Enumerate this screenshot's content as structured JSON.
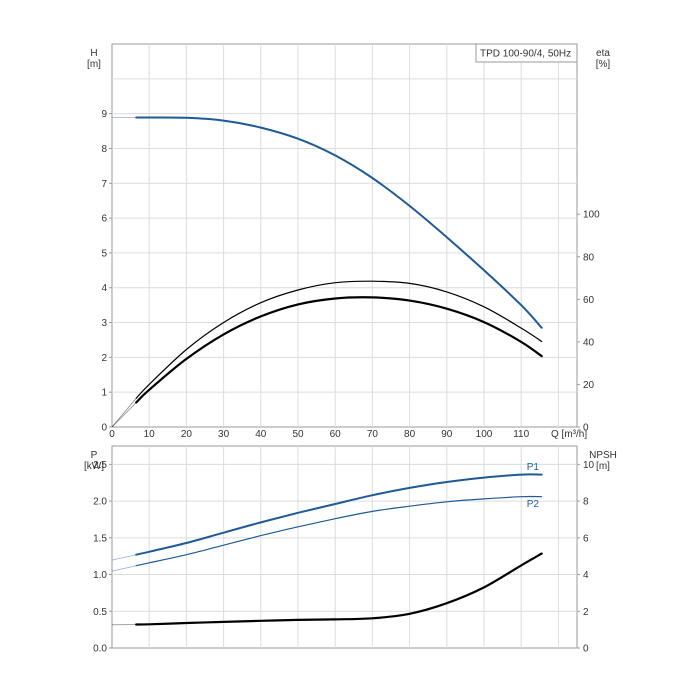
{
  "chart_data": [
    {
      "type": "line",
      "title": "TPD 100-90/4, 50Hz",
      "xlabel": "Q [m³/h]",
      "ylabel": [
        "H",
        "[m]"
      ],
      "ylabel_right": [
        "eta",
        "[%]"
      ],
      "xlim": [
        0,
        125
      ],
      "ylim": [
        0,
        11
      ],
      "ylim_right": [
        0,
        180
      ],
      "x_ticks": [
        0,
        10,
        20,
        30,
        40,
        50,
        60,
        70,
        80,
        90,
        100,
        110
      ],
      "y_ticks": [
        0,
        1,
        2,
        3,
        4,
        5,
        6,
        7,
        8,
        9
      ],
      "y_ticks_right": [
        0,
        20,
        40,
        60,
        80,
        100
      ],
      "grid": true,
      "series": [
        {
          "axis": "left",
          "color": "#1f5a96",
          "x": [
            6.5,
            10,
            20,
            30,
            40,
            50,
            60,
            70,
            80,
            90,
            100,
            110,
            115.5
          ],
          "y": [
            8.89,
            8.89,
            8.88,
            8.8,
            8.6,
            8.28,
            7.8,
            7.15,
            6.35,
            5.45,
            4.5,
            3.5,
            2.85
          ]
        },
        {
          "axis": "right",
          "color": "#000000",
          "x": [
            6.5,
            10,
            20,
            30,
            40,
            50,
            60,
            70,
            80,
            90,
            100,
            110,
            115.5
          ],
          "y": [
            11.5,
            17.5,
            32,
            43.5,
            52,
            57.6,
            60.4,
            60.9,
            59.4,
            55.6,
            49.3,
            40,
            33.3
          ]
        },
        {
          "axis": "right",
          "color": "#000000",
          "x": [
            6.5,
            10,
            20,
            30,
            40,
            50,
            60,
            70,
            80,
            90,
            100,
            110,
            115.5
          ],
          "y": [
            13.5,
            20,
            36.4,
            49.1,
            58.4,
            64.4,
            67.8,
            68.5,
            67.5,
            63.5,
            56.5,
            46.5,
            40.2
          ]
        }
      ]
    },
    {
      "type": "line",
      "xlabel": "",
      "ylabel": [
        "P",
        "[kW]"
      ],
      "ylabel_right": [
        "NPSH",
        "[m]"
      ],
      "xlim": [
        0,
        125
      ],
      "ylim": [
        0,
        2.75
      ],
      "ylim_right": [
        0,
        11
      ],
      "x_ticks": [
        0,
        10,
        20,
        30,
        40,
        50,
        60,
        70,
        80,
        90,
        100,
        110
      ],
      "y_ticks": [
        0.0,
        0.5,
        1.0,
        1.5,
        2.0,
        2.5
      ],
      "y_tick_labels": [
        "0.0",
        "0.5",
        "1.0",
        "1.5",
        "2.0",
        "2.5"
      ],
      "y_ticks_right": [
        0,
        2,
        4,
        6,
        8,
        10
      ],
      "grid": true,
      "series": [
        {
          "name": "P1",
          "axis": "left",
          "color": "#1f5a96",
          "x": [
            6.5,
            10,
            20,
            30,
            40,
            50,
            60,
            70,
            80,
            90,
            100,
            110,
            115.5
          ],
          "y": [
            1.27,
            1.31,
            1.43,
            1.57,
            1.71,
            1.84,
            1.96,
            2.08,
            2.18,
            2.26,
            2.32,
            2.36,
            2.36
          ]
        },
        {
          "name": "P2",
          "axis": "left",
          "color": "#1f5a96",
          "x": [
            6.5,
            10,
            20,
            30,
            40,
            50,
            60,
            70,
            80,
            90,
            100,
            110,
            115.5
          ],
          "y": [
            1.12,
            1.16,
            1.27,
            1.4,
            1.53,
            1.65,
            1.76,
            1.86,
            1.93,
            1.99,
            2.03,
            2.06,
            2.06
          ]
        },
        {
          "axis": "right",
          "color": "#000000",
          "x": [
            6.5,
            10,
            20,
            30,
            40,
            50,
            60,
            70,
            80,
            90,
            100,
            110,
            115.5
          ],
          "y": [
            1.28,
            1.29,
            1.36,
            1.42,
            1.48,
            1.53,
            1.56,
            1.62,
            1.86,
            2.44,
            3.3,
            4.5,
            5.14
          ]
        }
      ]
    }
  ]
}
